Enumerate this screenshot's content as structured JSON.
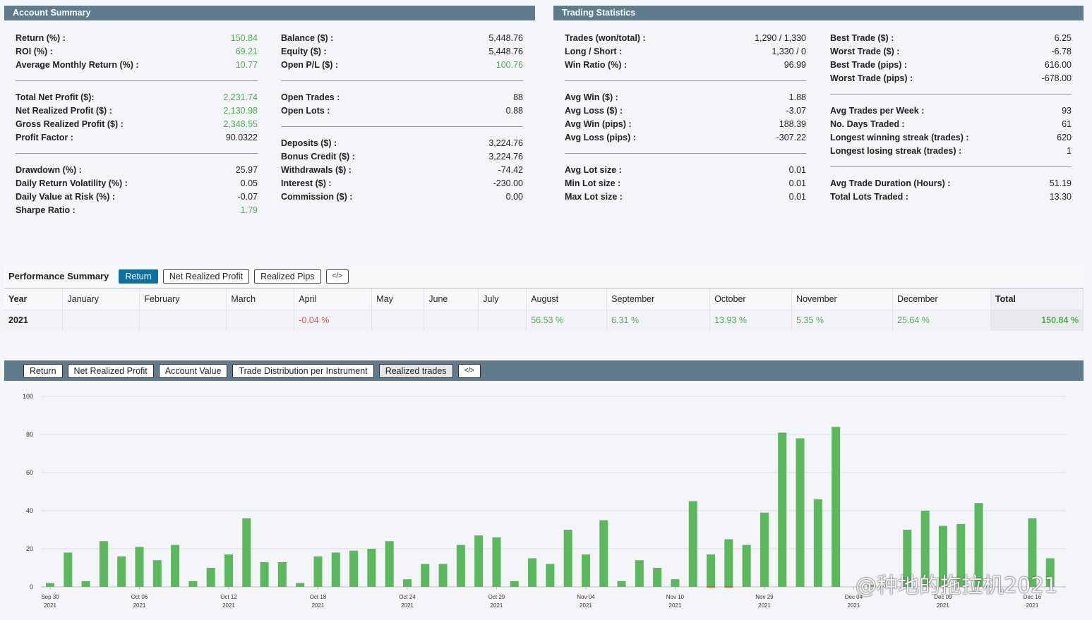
{
  "account_summary": {
    "title": "Account Summary",
    "col1": [
      [
        {
          "label": "Return (%) :",
          "value": "150.84",
          "pos": true
        },
        {
          "label": "ROI (%) :",
          "value": "69.21",
          "pos": true
        },
        {
          "label": "Average Monthly Return (%) :",
          "value": "10.77",
          "pos": true
        }
      ],
      [
        {
          "label": "Total Net Profit ($):",
          "value": "2,231.74",
          "pos": true
        },
        {
          "label": "Net Realized Profit ($) :",
          "value": "2,130.98",
          "pos": true
        },
        {
          "label": "Gross Realized Profit ($) :",
          "value": "2,348.55",
          "pos": true
        },
        {
          "label": "Profit Factor :",
          "value": "90.0322",
          "pos": false
        }
      ],
      [
        {
          "label": "Drawdown (%) :",
          "value": "25.97",
          "pos": false
        },
        {
          "label": "Daily Return Volatility (%) :",
          "value": "0.05",
          "pos": false
        },
        {
          "label": "Daily Value at Risk (%) :",
          "value": "-0.07",
          "pos": false
        },
        {
          "label": "Sharpe Ratio :",
          "value": "1.79",
          "pos": true
        }
      ]
    ],
    "col2": [
      [
        {
          "label": "Balance ($) :",
          "value": "5,448.76",
          "pos": false
        },
        {
          "label": "Equity ($) :",
          "value": "5,448.76",
          "pos": false
        },
        {
          "label": "Open P/L ($) :",
          "value": "100.76",
          "pos": true
        }
      ],
      [
        {
          "label": "Open Trades :",
          "value": "88",
          "pos": false
        },
        {
          "label": "Open Lots :",
          "value": "0.88",
          "pos": false
        }
      ],
      [
        {
          "label": "Deposits ($) :",
          "value": "3,224.76",
          "pos": false
        },
        {
          "label": "Bonus Credit ($) :",
          "value": "3,224.76",
          "pos": false
        },
        {
          "label": "Withdrawals ($) :",
          "value": "-74.42",
          "pos": false
        },
        {
          "label": "Interest ($) :",
          "value": "-230.00",
          "pos": false
        },
        {
          "label": "Commission ($) :",
          "value": "0.00",
          "pos": false
        }
      ]
    ]
  },
  "trading_statistics": {
    "title": "Trading Statistics",
    "col1": [
      [
        {
          "label": "Trades (won/total) :",
          "value": "1,290 / 1,330",
          "pos": false
        },
        {
          "label": "Long / Short :",
          "value": "1,330 / 0",
          "pos": false
        },
        {
          "label": "Win Ratio (%) :",
          "value": "96.99",
          "pos": false
        }
      ],
      [
        {
          "label": "Avg Win ($) :",
          "value": "1.88",
          "pos": false
        },
        {
          "label": "Avg Loss ($) :",
          "value": "-3.07",
          "pos": false
        },
        {
          "label": "Avg Win (pips) :",
          "value": "188.39",
          "pos": false
        },
        {
          "label": "Avg Loss (pips) :",
          "value": "-307.22",
          "pos": false
        }
      ],
      [
        {
          "label": "Avg Lot size :",
          "value": "0.01",
          "pos": false
        },
        {
          "label": "Min Lot size :",
          "value": "0.01",
          "pos": false
        },
        {
          "label": "Max Lot size :",
          "value": "0.01",
          "pos": false
        }
      ]
    ],
    "col2": [
      [
        {
          "label": "Best Trade ($) :",
          "value": "6.25",
          "pos": false
        },
        {
          "label": "Worst Trade ($) :",
          "value": "-6.78",
          "pos": false
        },
        {
          "label": "Best Trade (pips) :",
          "value": "616.00",
          "pos": false
        },
        {
          "label": "Worst Trade (pips) :",
          "value": "-678.00",
          "pos": false
        }
      ],
      [
        {
          "label": "Avg Trades per Week :",
          "value": "93",
          "pos": false
        },
        {
          "label": "No. Days Traded :",
          "value": "61",
          "pos": false
        },
        {
          "label": "Longest winning streak (trades) :",
          "value": "620",
          "pos": false
        },
        {
          "label": "Longest losing streak (trades) :",
          "value": "1",
          "pos": false
        }
      ],
      [
        {
          "label": "Avg Trade Duration (Hours) :",
          "value": "51.19",
          "pos": false
        },
        {
          "label": "Total Lots Traded :",
          "value": "13.30",
          "pos": false
        }
      ]
    ]
  },
  "performance": {
    "title": "Performance Summary",
    "tabs": [
      "Return",
      "Net Realized Profit",
      "Realized Pips",
      "</>"
    ],
    "headers": [
      "Year",
      "January",
      "February",
      "March",
      "April",
      "May",
      "June",
      "July",
      "August",
      "September",
      "October",
      "November",
      "December",
      "Total"
    ],
    "row": {
      "year": "2021",
      "cells": [
        "",
        "",
        "",
        "-0.04 %",
        "",
        "",
        "",
        "56.53 %",
        "6.31 %",
        "13.93 %",
        "5.35 %",
        "25.64 %"
      ],
      "total": "150.84 %"
    }
  },
  "chart_tabs": [
    "Return",
    "Net Realized Profit",
    "Account Value",
    "Trade Distribution per Instrument",
    "Realized trades",
    "</>"
  ],
  "chart_data": {
    "type": "bar",
    "ylim": [
      0,
      100
    ],
    "yticks": [
      0,
      20,
      40,
      60,
      80,
      100
    ],
    "grid": true,
    "color_positive": "#5cb85c",
    "color_negative": "#e05050",
    "xtick_labels": [
      {
        "date": "Sep 30",
        "year": "2021",
        "index": 0
      },
      {
        "date": "Oct 06",
        "year": "2021",
        "index": 5
      },
      {
        "date": "Oct 12",
        "year": "2021",
        "index": 10
      },
      {
        "date": "Oct 18",
        "year": "2021",
        "index": 15
      },
      {
        "date": "Oct 24",
        "year": "2021",
        "index": 20
      },
      {
        "date": "Oct 29",
        "year": "2021",
        "index": 25
      },
      {
        "date": "Nov 04",
        "year": "2021",
        "index": 30
      },
      {
        "date": "Nov 10",
        "year": "2021",
        "index": 35
      },
      {
        "date": "Nov 29",
        "year": "2021",
        "index": 40
      },
      {
        "date": "Dec 04",
        "year": "2021",
        "index": 45
      },
      {
        "date": "Dec 09",
        "year": "2021",
        "index": 50
      },
      {
        "date": "Dec 16",
        "year": "2021",
        "index": 55
      }
    ],
    "values": [
      2,
      18,
      3,
      24,
      16,
      21,
      14,
      22,
      3,
      10,
      17,
      36,
      13,
      13,
      2,
      16,
      18,
      19,
      20,
      24,
      4,
      12,
      12,
      22,
      27,
      26,
      3,
      15,
      12,
      30,
      17,
      35,
      3,
      14,
      10,
      4,
      45,
      17,
      25,
      22,
      39,
      81,
      78,
      46,
      84,
      0,
      1,
      0,
      30,
      40,
      32,
      33,
      44,
      0,
      0,
      36,
      15
    ],
    "negatives": [
      0,
      0,
      0,
      0,
      0,
      0,
      0,
      0,
      0,
      0,
      0,
      0,
      0,
      0,
      0,
      0,
      0,
      0,
      0,
      0,
      0,
      0,
      0,
      0,
      0,
      0,
      0,
      0,
      0,
      0,
      0,
      0,
      0,
      0,
      0,
      0,
      0,
      0.5,
      0.5,
      0,
      0,
      0,
      0,
      0,
      0,
      0,
      0,
      0,
      0,
      0,
      0,
      0,
      0,
      0,
      0,
      0,
      0
    ]
  },
  "watermark": "@种地的拖拉机2021"
}
